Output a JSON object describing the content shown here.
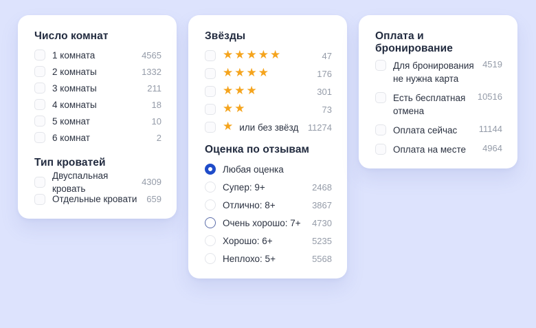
{
  "colors": {
    "background": "#dde3fd",
    "card_bg": "#ffffff",
    "heading": "#222b3f",
    "label": "#2a3140",
    "count": "#949ba8",
    "star_orange": "#f5a41d",
    "radio_selected_blue": "#1f4cc9",
    "radio_hover_border": "#5b6da9",
    "control_border": "#e3e5ea"
  },
  "rooms_card": {
    "title": "Число комнат",
    "options": [
      {
        "label": "1 комната",
        "count": "4565"
      },
      {
        "label": "2 комнаты",
        "count": "1332"
      },
      {
        "label": "3 комнаты",
        "count": "211"
      },
      {
        "label": "4 комнаты",
        "count": "18"
      },
      {
        "label": "5 комнат",
        "count": "10"
      },
      {
        "label": "6 комнат",
        "count": "2"
      }
    ],
    "beds_title": "Тип кроватей",
    "beds_options": [
      {
        "label": "Двуспальная кровать",
        "count": "4309"
      },
      {
        "label": "Отдельные кровати",
        "count": "659"
      }
    ]
  },
  "stars_card": {
    "title": "Звёзды",
    "options": [
      {
        "stars": 5,
        "glyph": "★★★★★",
        "label": "",
        "count": "47"
      },
      {
        "stars": 4,
        "glyph": "★★★★",
        "label": "",
        "count": "176"
      },
      {
        "stars": 3,
        "glyph": "★★★",
        "label": "",
        "count": "301"
      },
      {
        "stars": 2,
        "glyph": "★★",
        "label": "",
        "count": "73"
      },
      {
        "stars": 1,
        "glyph": "★",
        "label": "или без звёзд",
        "count": "11274"
      }
    ],
    "rating_title": "Оценка по отзывам",
    "rating_options": [
      {
        "label": "Любая оценка",
        "count": "",
        "state": "selected"
      },
      {
        "label": "Супер: 9+",
        "count": "2468",
        "state": "default"
      },
      {
        "label": "Отлично: 8+",
        "count": "3867",
        "state": "default"
      },
      {
        "label": "Очень хорошо: 7+",
        "count": "4730",
        "state": "hover"
      },
      {
        "label": "Хорошо: 6+",
        "count": "5235",
        "state": "default"
      },
      {
        "label": "Неплохо: 5+",
        "count": "5568",
        "state": "default"
      }
    ]
  },
  "payment_card": {
    "title": "Оплата и бронирование",
    "options": [
      {
        "label": "Для бронирования не нужна карта",
        "count": "4519"
      },
      {
        "label": "Есть бесплатная отмена",
        "count": "10516"
      },
      {
        "label": "Оплата сейчас",
        "count": "11144"
      },
      {
        "label": "Оплата на месте",
        "count": "4964"
      }
    ]
  }
}
